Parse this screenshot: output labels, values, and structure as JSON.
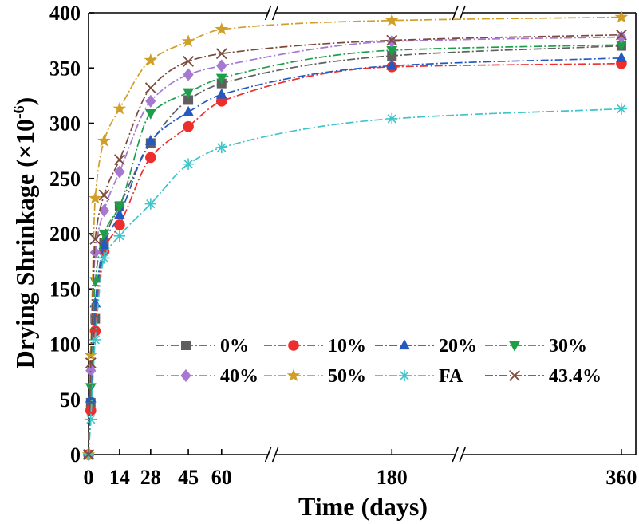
{
  "chart_data": {
    "type": "line",
    "title": "",
    "xlabel": "Time (days)",
    "ylabel": {
      "main": "Drying Shrinkage (×10",
      "exponent": "-6",
      "close": ")"
    },
    "ylim": [
      0,
      400
    ],
    "x_segments": [
      [
        0,
        82.6
      ],
      [
        125.8,
        210.2
      ],
      [
        286.7,
        366.5
      ]
    ],
    "x_ticks": [
      0,
      14,
      28,
      45,
      60,
      180,
      360
    ],
    "y_ticks": [
      0,
      50,
      100,
      150,
      200,
      250,
      300,
      350,
      400
    ],
    "grid": false,
    "legend_position": "lower-right",
    "x": [
      0,
      1,
      3,
      7,
      14,
      28,
      45,
      60,
      180,
      360
    ],
    "series": [
      {
        "name": "0%",
        "color": "#5f5f5f",
        "marker": "square",
        "values": [
          0,
          47,
          123,
          192,
          225,
          282,
          321,
          336,
          361,
          370
        ]
      },
      {
        "name": "10%",
        "color": "#ee2d2d",
        "marker": "circle",
        "values": [
          0,
          40,
          112,
          184,
          208,
          269,
          297,
          320,
          351,
          354
        ]
      },
      {
        "name": "20%",
        "color": "#2359c0",
        "marker": "triangle-up",
        "values": [
          0,
          51,
          137,
          190,
          217,
          284,
          310,
          326,
          352,
          359
        ]
      },
      {
        "name": "30%",
        "color": "#1e9e4a",
        "marker": "triangle-down",
        "values": [
          0,
          61,
          157,
          200,
          225,
          309,
          328,
          341,
          366,
          371
        ]
      },
      {
        "name": "40%",
        "color": "#a678d2",
        "marker": "diamond",
        "values": [
          0,
          76,
          183,
          221,
          256,
          320,
          344,
          352,
          374,
          378
        ]
      },
      {
        "name": "50%",
        "color": "#cf9f28",
        "marker": "star",
        "values": [
          0,
          90,
          232,
          284,
          313,
          357,
          374,
          385,
          393,
          396
        ]
      },
      {
        "name": "FA",
        "color": "#3ec4c9",
        "marker": "asterisk",
        "values": [
          0,
          32,
          104,
          178,
          198,
          227,
          263,
          278,
          304,
          313
        ]
      },
      {
        "name": "43.4%",
        "color": "#7b4a3d",
        "marker": "cross",
        "values": [
          0,
          83,
          195,
          235,
          267,
          332,
          356,
          363,
          375,
          380
        ]
      }
    ]
  }
}
